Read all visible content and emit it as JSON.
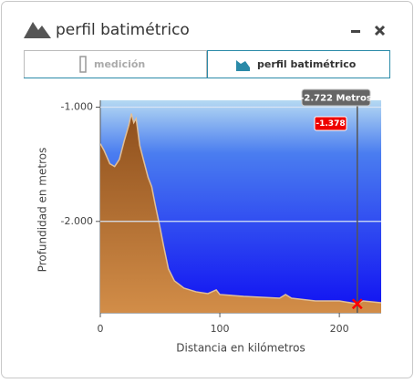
{
  "window": {
    "title": "perfil batimétrico"
  },
  "tabs": [
    "medición",
    "perfil batimétrico"
  ],
  "chart_data": {
    "type": "area",
    "x_label": "Distancia en kilómetros",
    "y_label": "Profundidad en metros",
    "x": [
      0,
      3,
      8,
      12,
      16,
      20,
      24,
      26,
      28,
      30,
      33,
      36,
      40,
      43,
      46,
      50,
      53,
      57,
      62,
      70,
      80,
      90,
      97,
      100,
      120,
      150,
      155,
      160,
      180,
      200,
      215,
      220,
      235
    ],
    "values": [
      -1320,
      -1376,
      -1496,
      -1520,
      -1456,
      -1296,
      -1152,
      -1056,
      -1136,
      -1100,
      -1336,
      -1456,
      -1616,
      -1696,
      -1856,
      -2056,
      -2216,
      -2416,
      -2520,
      -2584,
      -2616,
      -2632,
      -2600,
      -2640,
      -2656,
      -2672,
      -2640,
      -2672,
      -2696,
      -2696,
      -2722,
      -2696,
      -2712
    ],
    "color": "#c5803f",
    "xlim": [
      0,
      235
    ],
    "ylim": [
      -2800,
      -940
    ],
    "xticks": [
      0,
      100,
      200
    ],
    "yticks": [
      {
        "value": -1000,
        "label": "-1.000"
      },
      {
        "value": -2000,
        "label": "-2.000"
      }
    ],
    "grid": true,
    "crosshair": {
      "x": 215,
      "y": -2722,
      "label": "-2.722 Metros",
      "secondary_label": "-1.378"
    }
  }
}
